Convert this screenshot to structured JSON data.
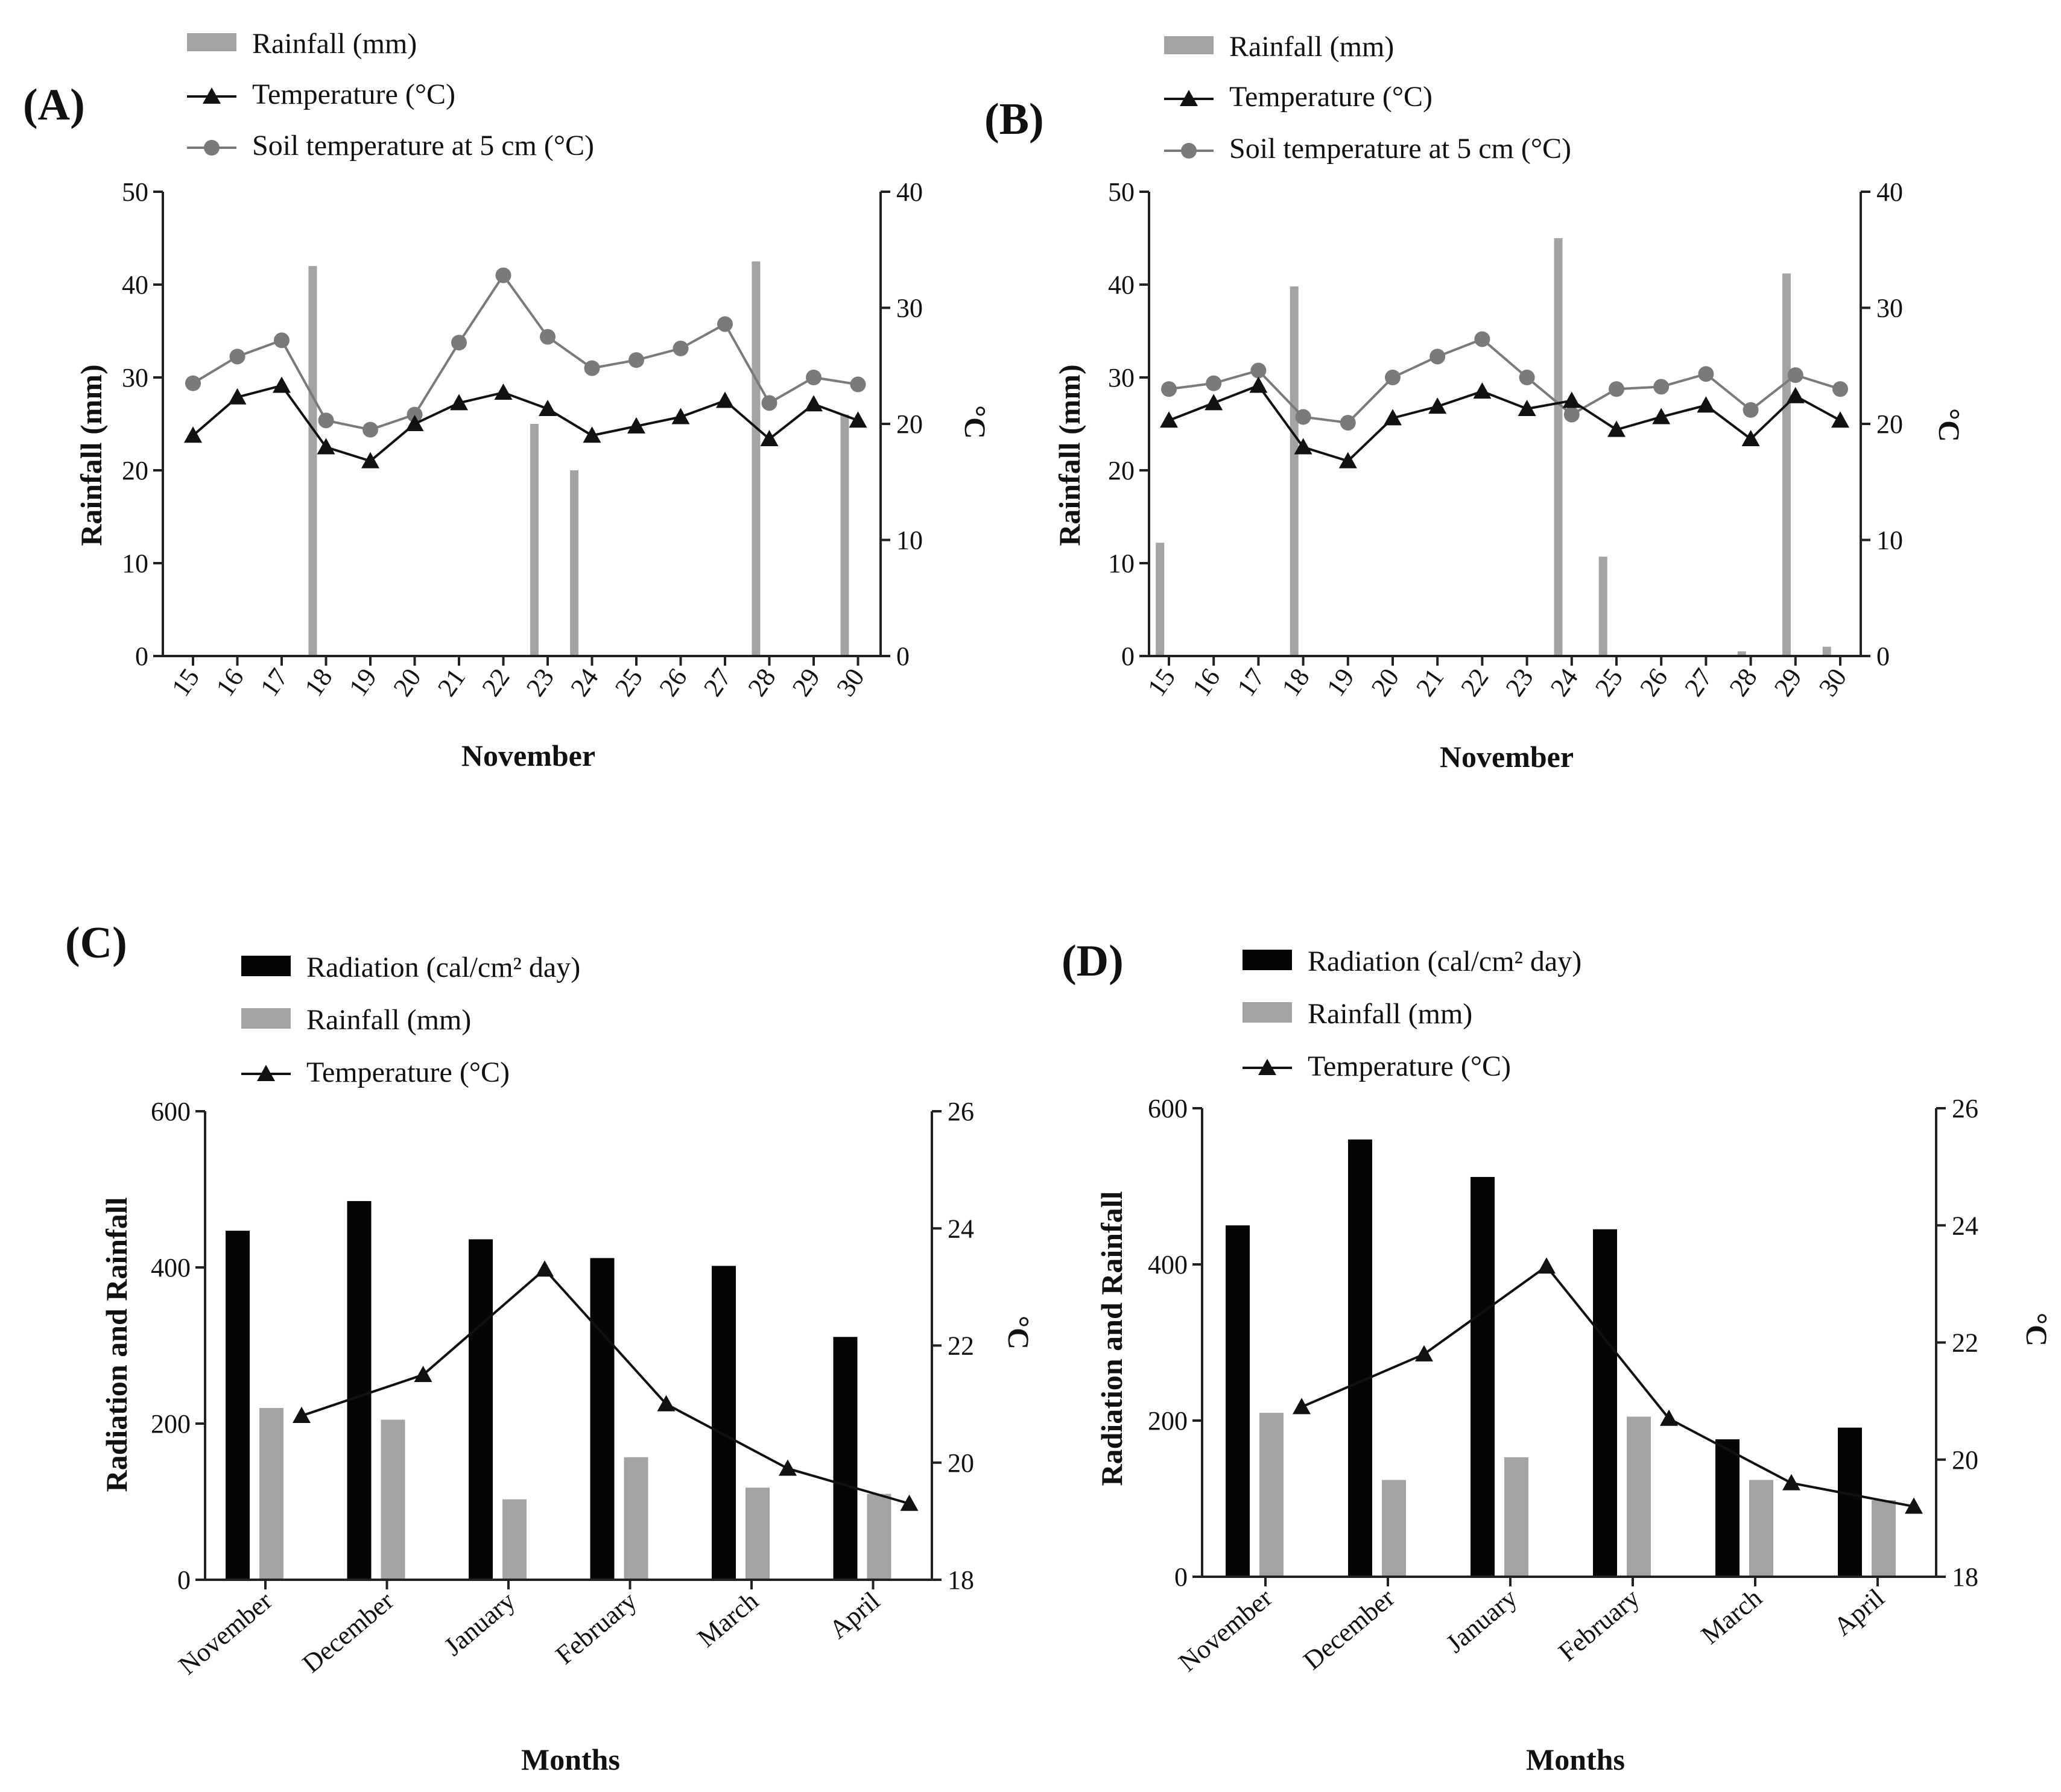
{
  "colors": {
    "rainfall": "#a3a3a5",
    "radiation": "#050505",
    "temperature": "#111111",
    "soil": "#7a7a7a"
  },
  "chart_data": [
    {
      "panel": "(A)",
      "type": "bar+line",
      "legend": [
        "Rainfall (mm)",
        "Temperature (°C)",
        "Soil temperature at 5 cm (°C)"
      ],
      "categories": [
        "15",
        "16",
        "17",
        "18",
        "19",
        "20",
        "21",
        "22",
        "23",
        "24",
        "25",
        "26",
        "27",
        "28",
        "29",
        "30"
      ],
      "rainfall_bars": [
        {
          "x": 17.7,
          "value": 42
        },
        {
          "x": 22.7,
          "value": 25
        },
        {
          "x": 23.6,
          "value": 20
        },
        {
          "x": 27.7,
          "value": 42.5
        },
        {
          "x": 29.7,
          "value": 26
        }
      ],
      "temperature": [
        19,
        22.3,
        23.3,
        18,
        16.8,
        20,
        21.8,
        22.7,
        21.3,
        19,
        19.8,
        20.6,
        22,
        18.7,
        21.7,
        20.3
      ],
      "soil_temperature": [
        23.5,
        25.8,
        27.2,
        20.3,
        19.5,
        20.8,
        27,
        32.8,
        27.5,
        24.8,
        25.5,
        26.5,
        28.6,
        21.8,
        24,
        23.4
      ],
      "xlabel": "November",
      "ylabel_left": "Rainfall (mm)",
      "ylabel_right": "°C",
      "ylim_left": [
        0,
        50
      ],
      "ylim_right": [
        0,
        40
      ],
      "yticks_left": [
        "0",
        "10",
        "20",
        "30",
        "40",
        "50"
      ],
      "yticks_right": [
        "0",
        "10",
        "20",
        "30",
        "40"
      ]
    },
    {
      "panel": "(B)",
      "type": "bar+line",
      "legend": [
        "Rainfall (mm)",
        "Temperature (°C)",
        "Soil temperature at 5 cm (°C)"
      ],
      "categories": [
        "15",
        "16",
        "17",
        "18",
        "19",
        "20",
        "21",
        "22",
        "23",
        "24",
        "25",
        "26",
        "27",
        "28",
        "29",
        "30"
      ],
      "rainfall_bars": [
        {
          "x": 14.8,
          "value": 12.2
        },
        {
          "x": 17.8,
          "value": 39.8
        },
        {
          "x": 23.7,
          "value": 45
        },
        {
          "x": 24.7,
          "value": 10.7
        },
        {
          "x": 27.8,
          "value": 0.5
        },
        {
          "x": 28.8,
          "value": 41.2
        },
        {
          "x": 29.7,
          "value": 1
        }
      ],
      "temperature": [
        20.3,
        21.8,
        23.3,
        18,
        16.8,
        20.5,
        21.5,
        22.8,
        21.3,
        22,
        19.5,
        20.6,
        21.6,
        18.7,
        22.4,
        20.3
      ],
      "soil_temperature": [
        23,
        23.5,
        24.6,
        20.6,
        20.1,
        24,
        25.8,
        27.3,
        24,
        20.8,
        23,
        23.2,
        24.3,
        21.2,
        24.2,
        23
      ],
      "xlabel": "November",
      "ylabel_left": "Rainfall (mm)",
      "ylabel_right": "°C",
      "ylim_left": [
        0,
        50
      ],
      "ylim_right": [
        0,
        40
      ],
      "yticks_left": [
        "0",
        "10",
        "20",
        "30",
        "40",
        "50"
      ],
      "yticks_right": [
        "0",
        "10",
        "20",
        "30",
        "40"
      ]
    },
    {
      "panel": "(C)",
      "type": "grouped-bar+line",
      "legend": [
        "Radiation (cal/cm² day)",
        "Rainfall (mm)",
        "Temperature (°C)"
      ],
      "categories": [
        "November",
        "December",
        "January",
        "February",
        "March",
        "April"
      ],
      "radiation": [
        447,
        485,
        436,
        412,
        402,
        311
      ],
      "rainfall": [
        220,
        205,
        103,
        157,
        118,
        110
      ],
      "temperature": [
        20.8,
        21.5,
        23.3,
        21,
        19.9,
        19.3
      ],
      "xlabel": "Months",
      "ylabel_left": "Radiation and Rainfall",
      "ylabel_right": "°C",
      "ylim_left": [
        0,
        600
      ],
      "ylim_right": [
        18,
        26
      ],
      "yticks_left": [
        "0",
        "200",
        "400",
        "600"
      ],
      "yticks_right": [
        "18",
        "20",
        "22",
        "24",
        "26"
      ]
    },
    {
      "panel": "(D)",
      "type": "grouped-bar+line",
      "legend": [
        "Radiation (cal/cm² day)",
        "Rainfall (mm)",
        "Temperature (°C)"
      ],
      "categories": [
        "November",
        "December",
        "January",
        "February",
        "March",
        "April"
      ],
      "radiation": [
        450,
        560,
        512,
        445,
        176,
        191
      ],
      "rainfall": [
        210,
        124,
        153,
        205,
        124,
        98
      ],
      "temperature": [
        20.9,
        21.8,
        23.3,
        20.7,
        19.6,
        19.2
      ],
      "xlabel": "Months",
      "ylabel_left": "Radiation and Rainfall",
      "ylabel_right": "°C",
      "ylim_left": [
        0,
        600
      ],
      "ylim_right": [
        18,
        26
      ],
      "yticks_left": [
        "0",
        "200",
        "400",
        "600"
      ],
      "yticks_right": [
        "18",
        "20",
        "22",
        "24",
        "26"
      ]
    }
  ]
}
